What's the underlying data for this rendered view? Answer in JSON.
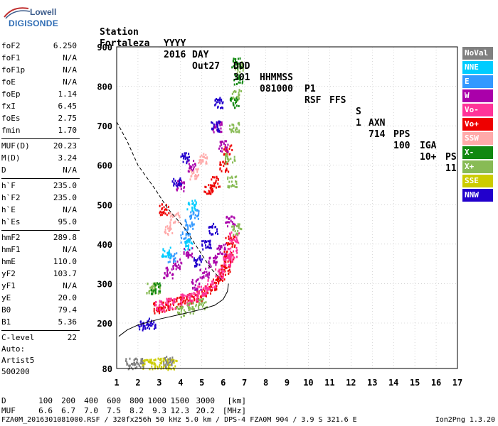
{
  "logo": {
    "line1": "Lowell",
    "line2": "DIGISONDE"
  },
  "header": {
    "row1": [
      "Station",
      "YYYY",
      "DAY",
      "DDD",
      "HHMMSS",
      "P1",
      "FFS",
      "S",
      "AXN",
      "PPS",
      "IGA",
      "PS"
    ],
    "row2": [
      "Fortaleza",
      "2016",
      "Out27",
      "301",
      "081000",
      "RSF",
      "",
      "1",
      "714",
      "100",
      "10+",
      "11"
    ]
  },
  "params": {
    "group1": [
      {
        "k": "foF2",
        "v": "6.250"
      },
      {
        "k": "foF1",
        "v": "N/A"
      },
      {
        "k": "foF1p",
        "v": "N/A"
      },
      {
        "k": "foE",
        "v": "N/A"
      },
      {
        "k": "foEp",
        "v": "1.14"
      },
      {
        "k": "fxI",
        "v": "6.45"
      },
      {
        "k": "foEs",
        "v": "2.75"
      },
      {
        "k": "fmin",
        "v": "1.70"
      }
    ],
    "group2": [
      {
        "k": "MUF(D)",
        "v": "20.23"
      },
      {
        "k": "M(D)",
        "v": "3.24"
      },
      {
        "k": "D",
        "v": "N/A"
      }
    ],
    "group3": [
      {
        "k": "h`F",
        "v": "235.0"
      },
      {
        "k": "h`F2",
        "v": "235.0"
      },
      {
        "k": "h`E",
        "v": "N/A"
      },
      {
        "k": "h`Es",
        "v": "95.0"
      }
    ],
    "group4": [
      {
        "k": "hmF2",
        "v": "289.8"
      },
      {
        "k": "hmF1",
        "v": "N/A"
      },
      {
        "k": "hmE",
        "v": "110.0"
      },
      {
        "k": "yF2",
        "v": "103.7"
      },
      {
        "k": "yF1",
        "v": "N/A"
      },
      {
        "k": "yE",
        "v": "20.0"
      },
      {
        "k": "B0",
        "v": "79.4"
      },
      {
        "k": "B1",
        "v": "5.36"
      }
    ],
    "group5": [
      {
        "k": "C-level",
        "v": "22"
      }
    ]
  },
  "auto": {
    "line1": "Auto:",
    "line2": "Artist5",
    "line3": "500200"
  },
  "legend": [
    {
      "label": "NoVal",
      "color": "#808080"
    },
    {
      "label": "NNE",
      "color": "#00ccff"
    },
    {
      "label": "E",
      "color": "#3399ff"
    },
    {
      "label": "W",
      "color": "#aa00aa"
    },
    {
      "label": "Vo-",
      "color": "#ff3399"
    },
    {
      "label": "Vo+",
      "color": "#ee0000"
    },
    {
      "label": "SSW",
      "color": "#ffaaaa"
    },
    {
      "label": "X-",
      "color": "#118811"
    },
    {
      "label": "X+",
      "color": "#88bb55"
    },
    {
      "label": "SSE",
      "color": "#cccc00"
    },
    {
      "label": "NNW",
      "color": "#2200cc"
    }
  ],
  "chart_data": {
    "type": "scatter",
    "title": "",
    "xlabel": "",
    "ylabel": "",
    "xlim": [
      1,
      17
    ],
    "ylim": [
      80,
      900
    ],
    "x_ticks": [
      1,
      2,
      3,
      4,
      5,
      6,
      7,
      8,
      9,
      10,
      11,
      12,
      13,
      14,
      15,
      16,
      17
    ],
    "y_ticks": [
      80,
      200,
      300,
      400,
      500,
      600,
      700,
      800,
      900
    ],
    "grid": true,
    "legend_position": "right",
    "series": [
      {
        "name": "Vo+",
        "color": "#ee0000",
        "points": [
          [
            2.9,
            240
          ],
          [
            3.2,
            245
          ],
          [
            3.6,
            250
          ],
          [
            4.0,
            255
          ],
          [
            4.4,
            262
          ],
          [
            4.8,
            270
          ],
          [
            5.2,
            282
          ],
          [
            5.6,
            300
          ],
          [
            5.9,
            320
          ],
          [
            6.1,
            340
          ],
          [
            6.25,
            370
          ],
          [
            6.3,
            410
          ],
          [
            6.2,
            640
          ],
          [
            6.0,
            600
          ],
          [
            5.6,
            560
          ],
          [
            5.3,
            540
          ],
          [
            3.2,
            490
          ]
        ]
      },
      {
        "name": "Vo-",
        "color": "#ff3399",
        "points": [
          [
            3.0,
            245
          ],
          [
            3.5,
            252
          ],
          [
            4.2,
            262
          ],
          [
            4.6,
            268
          ],
          [
            5.0,
            285
          ],
          [
            5.4,
            300
          ],
          [
            5.8,
            330
          ],
          [
            6.2,
            360
          ],
          [
            6.4,
            380
          ],
          [
            6.5,
            420
          ]
        ]
      },
      {
        "name": "W",
        "color": "#aa00aa",
        "points": [
          [
            3.4,
            330
          ],
          [
            3.8,
            350
          ],
          [
            4.3,
            380
          ],
          [
            4.7,
            300
          ],
          [
            5.1,
            330
          ],
          [
            5.5,
            360
          ],
          [
            5.9,
            390
          ],
          [
            6.3,
            460
          ],
          [
            6.0,
            650
          ],
          [
            5.7,
            700
          ],
          [
            4.5,
            600
          ],
          [
            4.0,
            550
          ]
        ]
      },
      {
        "name": "X+",
        "color": "#88bb55",
        "points": [
          [
            6.3,
            620
          ],
          [
            6.5,
            700
          ],
          [
            6.6,
            780
          ],
          [
            6.7,
            850
          ],
          [
            6.4,
            560
          ],
          [
            6.6,
            440
          ],
          [
            4.0,
            230
          ],
          [
            4.5,
            240
          ],
          [
            5.0,
            250
          ],
          [
            2.6,
            290
          ],
          [
            2.8,
            290
          ]
        ]
      },
      {
        "name": "X-",
        "color": "#118811",
        "points": [
          [
            6.6,
            860
          ],
          [
            6.7,
            820
          ],
          [
            6.5,
            760
          ],
          [
            2.8,
            290
          ]
        ]
      },
      {
        "name": "NNW",
        "color": "#2200cc",
        "points": [
          [
            4.8,
            360
          ],
          [
            5.2,
            400
          ],
          [
            5.5,
            440
          ],
          [
            3.8,
            560
          ],
          [
            4.2,
            620
          ],
          [
            5.6,
            700
          ],
          [
            5.8,
            760
          ],
          [
            2.2,
            195
          ],
          [
            2.6,
            200
          ]
        ]
      },
      {
        "name": "E",
        "color": "#3399ff",
        "points": [
          [
            4.4,
            450
          ],
          [
            4.6,
            480
          ],
          [
            4.2,
            420
          ],
          [
            3.6,
            370
          ]
        ]
      },
      {
        "name": "NNE",
        "color": "#00ccff",
        "points": [
          [
            4.5,
            500
          ],
          [
            3.3,
            380
          ],
          [
            4.4,
            400
          ]
        ]
      },
      {
        "name": "SSE",
        "color": "#cccc00",
        "points": [
          [
            2.4,
            95
          ],
          [
            2.8,
            95
          ],
          [
            3.2,
            95
          ],
          [
            3.6,
            93
          ]
        ]
      },
      {
        "name": "SSW",
        "color": "#ffaaaa",
        "points": [
          [
            3.4,
            440
          ],
          [
            3.7,
            470
          ],
          [
            4.6,
            580
          ],
          [
            5.0,
            620
          ]
        ]
      },
      {
        "name": "NoVal",
        "color": "#808080",
        "points": [
          [
            1.6,
            95
          ],
          [
            2.0,
            95
          ],
          [
            3.4,
            100
          ]
        ]
      }
    ],
    "profile_curve": [
      [
        1.1,
        165
      ],
      [
        1.5,
        182
      ],
      [
        2.0,
        195
      ],
      [
        3.0,
        210
      ],
      [
        4.0,
        222
      ],
      [
        5.0,
        235
      ],
      [
        5.6,
        245
      ],
      [
        6.0,
        260
      ],
      [
        6.2,
        280
      ],
      [
        6.25,
        300
      ]
    ],
    "muf_curve_dashed": [
      [
        1.0,
        710
      ],
      [
        1.5,
        660
      ],
      [
        2.0,
        600
      ],
      [
        2.8,
        540
      ],
      [
        3.4,
        490
      ],
      [
        4.2,
        440
      ],
      [
        4.8,
        390
      ],
      [
        5.4,
        340
      ],
      [
        5.9,
        310
      ]
    ]
  },
  "bottom": {
    "row1_label": "D",
    "row1_values": [
      "100",
      "200",
      "400",
      "600",
      "800",
      "1000",
      "1500",
      "3000",
      "[km]"
    ],
    "row2_label": "MUF",
    "row2_values": [
      "6.6",
      "6.7",
      "7.0",
      "7.5",
      "8.2",
      "9.3",
      "12.3",
      "20.2",
      "[MHz]"
    ]
  },
  "footer": {
    "text": "FZA0M_2016301081000.RSF / 320fx256h 50 kHz 5.0 km / DPS-4 FZA0M 904 / 3.9 S 321.6 E",
    "version": "Ion2Png 1.3.20"
  }
}
